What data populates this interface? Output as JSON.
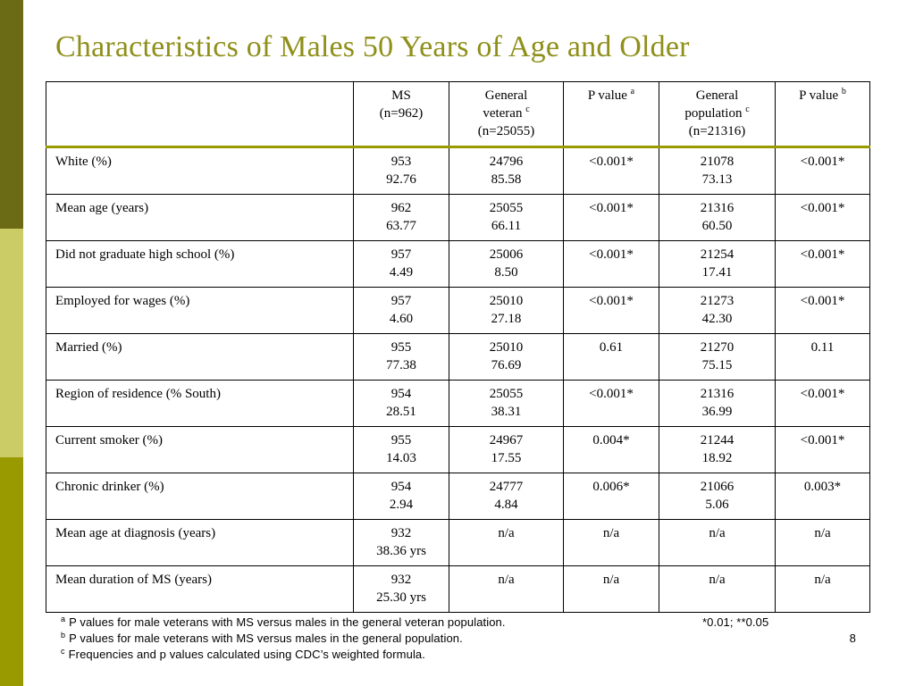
{
  "slide": {
    "title": "Characteristics of Males 50 Years of Age and Older",
    "page_number": "8"
  },
  "table": {
    "header": {
      "ms": [
        "MS",
        "(n=962)"
      ],
      "gv": [
        "General",
        "veteran",
        "c",
        "(n=25055)"
      ],
      "pa": [
        "P value",
        "a"
      ],
      "gp": [
        "General",
        "population",
        "c",
        "(n=21316)"
      ],
      "pb": [
        "P value",
        "b"
      ]
    },
    "rows": [
      {
        "label": "White (%)",
        "ms": [
          "953",
          "92.76"
        ],
        "gv": [
          "24796",
          "85.58"
        ],
        "pa": "<0.001*",
        "gp": [
          "21078",
          "73.13"
        ],
        "pb": "<0.001*"
      },
      {
        "label": "Mean age (years)",
        "ms": [
          "962",
          "63.77"
        ],
        "gv": [
          "25055",
          "66.11"
        ],
        "pa": "<0.001*",
        "gp": [
          "21316",
          "60.50"
        ],
        "pb": "<0.001*"
      },
      {
        "label": "Did not graduate high school (%)",
        "ms": [
          "957",
          "4.49"
        ],
        "gv": [
          "25006",
          "8.50"
        ],
        "pa": "<0.001*",
        "gp": [
          "21254",
          "17.41"
        ],
        "pb": "<0.001*"
      },
      {
        "label": "Employed for wages (%)",
        "ms": [
          "957",
          "4.60"
        ],
        "gv": [
          "25010",
          "27.18"
        ],
        "pa": "<0.001*",
        "gp": [
          "21273",
          "42.30"
        ],
        "pb": "<0.001*"
      },
      {
        "label": "Married (%)",
        "ms": [
          "955",
          "77.38"
        ],
        "gv": [
          "25010",
          "76.69"
        ],
        "pa": "0.61",
        "gp": [
          "21270",
          "75.15"
        ],
        "pb": "0.11"
      },
      {
        "label": "Region of residence (% South)",
        "ms": [
          "954",
          "28.51"
        ],
        "gv": [
          "25055",
          "38.31"
        ],
        "pa": "<0.001*",
        "gp": [
          "21316",
          "36.99"
        ],
        "pb": "<0.001*"
      },
      {
        "label": "Current smoker (%)",
        "ms": [
          "955",
          "14.03"
        ],
        "gv": [
          "24967",
          "17.55"
        ],
        "pa": "0.004*",
        "gp": [
          "21244",
          "18.92"
        ],
        "pb": "<0.001*"
      },
      {
        "label": "Chronic drinker (%)",
        "ms": [
          "954",
          "2.94"
        ],
        "gv": [
          "24777",
          "4.84"
        ],
        "pa": "0.006*",
        "gp": [
          "21066",
          "5.06"
        ],
        "pb": "0.003*"
      },
      {
        "label": "Mean age at diagnosis (years)",
        "ms": [
          "932",
          "38.36 yrs"
        ],
        "gv": [
          "n/a",
          ""
        ],
        "pa": "n/a",
        "gp": [
          "n/a",
          ""
        ],
        "pb": "n/a"
      },
      {
        "label": "Mean duration of MS (years)",
        "ms": [
          "932",
          "25.30 yrs"
        ],
        "gv": [
          "n/a",
          ""
        ],
        "pa": "n/a",
        "gp": [
          "n/a",
          ""
        ],
        "pb": "n/a"
      }
    ]
  },
  "footnotes": [
    {
      "mark": "a",
      "text": "P values for male veterans with MS versus males in the general veteran population."
    },
    {
      "mark": "b",
      "text": "P values for male veterans with MS versus males in the general population."
    },
    {
      "mark": "c",
      "text": "Frequencies and p values calculated using CDC’s weighted formula."
    }
  ],
  "significance_note": "*0.01; **0.05",
  "colors": {
    "title": "#8f8f1a",
    "bar_dark": "#6b6b16",
    "bar_light": "#cccc66",
    "bar_mid": "#999900"
  }
}
